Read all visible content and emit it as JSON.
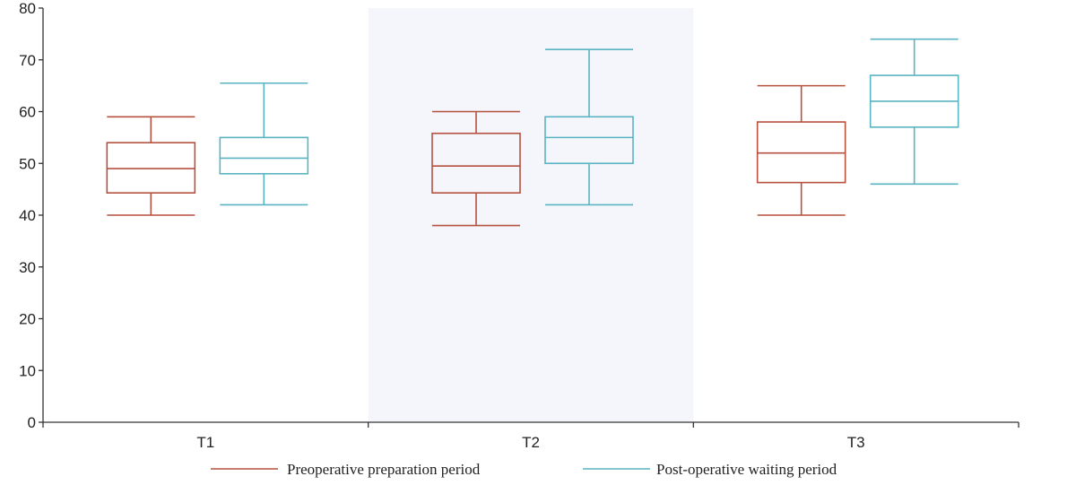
{
  "chart_data": {
    "type": "boxplot",
    "title": "",
    "xlabel": "",
    "ylabel": "",
    "ylim": [
      0,
      80
    ],
    "yticks": [
      0,
      10,
      20,
      30,
      40,
      50,
      60,
      70,
      80
    ],
    "categories": [
      "T1",
      "T2",
      "T3"
    ],
    "shaded_category": "T2",
    "grid": false,
    "legend_position": "bottom",
    "colors": {
      "preoperative": "#b5513f",
      "postoperative": "#5ab4c1",
      "shade": "#f5f6fb",
      "axis": "#333333"
    },
    "series": [
      {
        "name": "Preoperative preparation period",
        "color": "#b5513f",
        "boxes": [
          {
            "min": 40,
            "q1": 44.3,
            "median": 49,
            "q3": 54,
            "max": 59
          },
          {
            "min": 38,
            "q1": 44.3,
            "median": 49.5,
            "q3": 55.8,
            "max": 60
          },
          {
            "min": 40,
            "q1": 46.3,
            "median": 52,
            "q3": 58,
            "max": 65
          }
        ]
      },
      {
        "name": "Post-operative waiting period",
        "color": "#5ab4c1",
        "boxes": [
          {
            "min": 42,
            "q1": 48,
            "median": 51,
            "q3": 55,
            "max": 65.5
          },
          {
            "min": 42,
            "q1": 50,
            "median": 55,
            "q3": 59,
            "max": 72
          },
          {
            "min": 46,
            "q1": 57,
            "median": 62,
            "q3": 67,
            "max": 74
          }
        ]
      }
    ]
  }
}
